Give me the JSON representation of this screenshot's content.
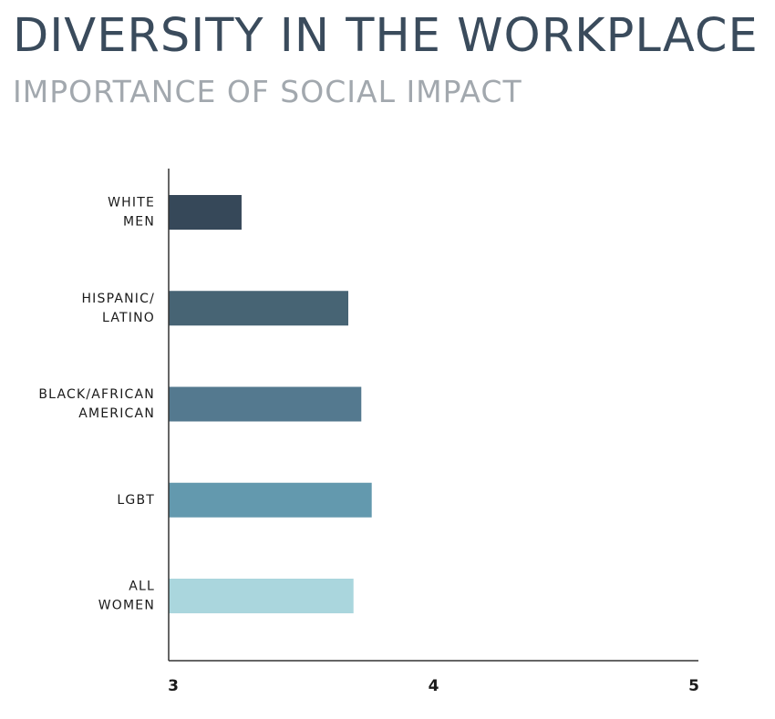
{
  "header": {
    "title": "DIVERSITY IN THE WORKPLACE",
    "subtitle": "IMPORTANCE OF SOCIAL IMPACT"
  },
  "chart_data": {
    "type": "bar",
    "orientation": "horizontal",
    "title": "DIVERSITY IN THE WORKPLACE",
    "subtitle": "IMPORTANCE OF SOCIAL IMPACT",
    "xlabel": "",
    "ylabel": "",
    "categories": [
      [
        "WHITE",
        "MEN"
      ],
      [
        "HISPANIC/",
        "LATINO"
      ],
      [
        "BLACK/AFRICAN",
        "AMERICAN"
      ],
      [
        "LGBT"
      ],
      [
        "ALL",
        "WOMEN"
      ]
    ],
    "values": [
      3.28,
      3.69,
      3.74,
      3.78,
      3.71
    ],
    "colors": [
      "#364859",
      "#476474",
      "#54798f",
      "#6399ae",
      "#aad6dd"
    ],
    "xlim": [
      3,
      5
    ],
    "xticks": [
      3,
      4,
      5
    ],
    "grid": false,
    "legend": "none"
  }
}
